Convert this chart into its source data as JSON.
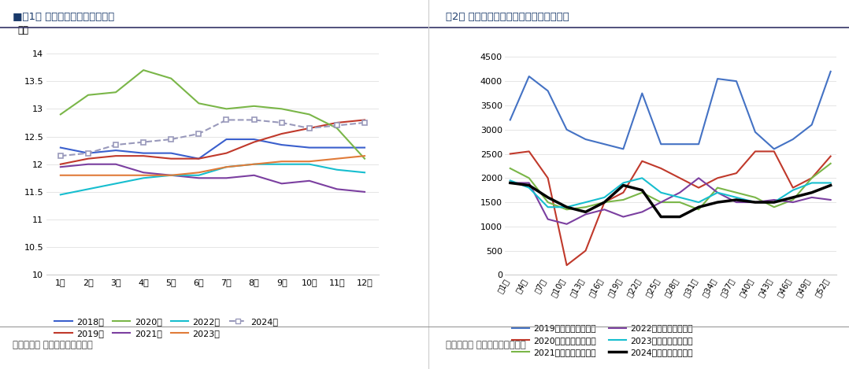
{
  "fig1_title": "■图1： 在产蛋鸡存栏及未来预测",
  "fig2_title": "图2： 全国主产区蛋鸡淘鸡出栏量（万只）",
  "source_text": "数据来源： 銀河期货，卓创资讯",
  "fig1_xlabel_list": [
    "1月",
    "2月",
    "3月",
    "4月",
    "5月",
    "6月",
    "7月",
    "8月",
    "9月",
    "10月",
    "11月",
    "12月"
  ],
  "fig1_ylabel": "亿只",
  "fig1_ylim": [
    10,
    14.2
  ],
  "fig1_yticks": [
    10,
    10.5,
    11,
    11.5,
    12,
    12.5,
    13,
    13.5,
    14
  ],
  "fig1_series": {
    "2018年": {
      "color": "#3a5fcd",
      "values": [
        12.3,
        12.2,
        12.25,
        12.2,
        12.2,
        12.1,
        12.45,
        12.45,
        12.35,
        12.3,
        12.3,
        12.3
      ],
      "marker": null,
      "dashed": false
    },
    "2019年": {
      "color": "#c0392b",
      "values": [
        12.0,
        12.1,
        12.15,
        12.15,
        12.1,
        12.1,
        12.2,
        12.4,
        12.55,
        12.65,
        12.75,
        12.8
      ],
      "marker": null,
      "dashed": false
    },
    "2020年": {
      "color": "#7ab648",
      "values": [
        12.9,
        13.25,
        13.3,
        13.7,
        13.55,
        13.1,
        13.0,
        13.05,
        13.0,
        12.9,
        12.65,
        12.1
      ],
      "marker": null,
      "dashed": false
    },
    "2021年": {
      "color": "#7b3fa0",
      "values": [
        11.95,
        12.0,
        12.0,
        11.85,
        11.8,
        11.75,
        11.75,
        11.8,
        11.65,
        11.7,
        11.55,
        11.5
      ],
      "marker": null,
      "dashed": false
    },
    "2022年": {
      "color": "#17becf",
      "values": [
        11.45,
        11.55,
        11.65,
        11.75,
        11.8,
        11.8,
        11.95,
        12.0,
        12.0,
        12.0,
        11.9,
        11.85
      ],
      "marker": null,
      "dashed": false
    },
    "2023年": {
      "color": "#e07b39",
      "values": [
        11.8,
        11.8,
        11.8,
        11.8,
        11.8,
        11.85,
        11.95,
        12.0,
        12.05,
        12.05,
        12.1,
        12.15
      ],
      "marker": null,
      "dashed": false
    },
    "2024年": {
      "color": "#9999bb",
      "values": [
        12.15,
        12.2,
        12.35,
        12.4,
        12.45,
        12.55,
        12.8,
        12.8,
        12.75,
        12.65,
        12.7,
        12.75
      ],
      "marker": "s",
      "dashed": true
    }
  },
  "fig2_xlabel_list": [
    "第1周",
    "第4周",
    "第7周",
    "第10周",
    "第13周",
    "第16周",
    "第19周",
    "第22周",
    "第25周",
    "第28周",
    "第31周",
    "第34周",
    "第37周",
    "第40周",
    "第43周",
    "第46周",
    "第49周",
    "第52周"
  ],
  "fig2_ylim": [
    0,
    4800
  ],
  "fig2_yticks": [
    0,
    500,
    1000,
    1500,
    2000,
    2500,
    3000,
    3500,
    4000,
    4500
  ],
  "fig2_series": {
    "2019年出栏量（万只）": {
      "color": "#4472c4",
      "values": [
        3200,
        4100,
        3800,
        3000,
        2800,
        2700,
        2600,
        3750,
        2700,
        2700,
        2700,
        4050,
        4000,
        2950,
        2600,
        2800,
        3100,
        4200
      ],
      "lw": 1.5
    },
    "2020年出栏量（万只）": {
      "color": "#c0392b",
      "values": [
        2500,
        2550,
        2000,
        200,
        500,
        1500,
        1700,
        2350,
        2200,
        2000,
        1800,
        2000,
        2100,
        2550,
        2550,
        1800,
        2000,
        2450
      ],
      "lw": 1.5
    },
    "2021年出栏量（万只）": {
      "color": "#7ab648",
      "values": [
        2200,
        2000,
        1500,
        1350,
        1400,
        1500,
        1550,
        1700,
        1500,
        1500,
        1350,
        1800,
        1700,
        1600,
        1400,
        1550,
        2000,
        2300
      ],
      "lw": 1.5
    },
    "2022年出栏量（万只）": {
      "color": "#7b3fa0",
      "values": [
        1900,
        1900,
        1150,
        1050,
        1250,
        1350,
        1200,
        1300,
        1500,
        1700,
        2000,
        1700,
        1500,
        1500,
        1550,
        1500,
        1600,
        1550
      ],
      "lw": 1.5
    },
    "2023年出栏量（万只）": {
      "color": "#17becf",
      "values": [
        1950,
        1800,
        1400,
        1400,
        1500,
        1600,
        1900,
        2000,
        1700,
        1600,
        1500,
        1700,
        1600,
        1500,
        1500,
        1750,
        1900,
        1900
      ],
      "lw": 1.5
    },
    "2024年出栏量（万只）": {
      "color": "#000000",
      "values": [
        1900,
        1850,
        1600,
        1400,
        1300,
        1500,
        1850,
        1750,
        1200,
        1200,
        1400,
        1500,
        1550,
        1500,
        1500,
        1600,
        1700,
        1850
      ],
      "lw": 2.5
    }
  },
  "bg_color": "#ffffff",
  "title_color": "#1a3a6b",
  "accent_color": "#4472c4"
}
